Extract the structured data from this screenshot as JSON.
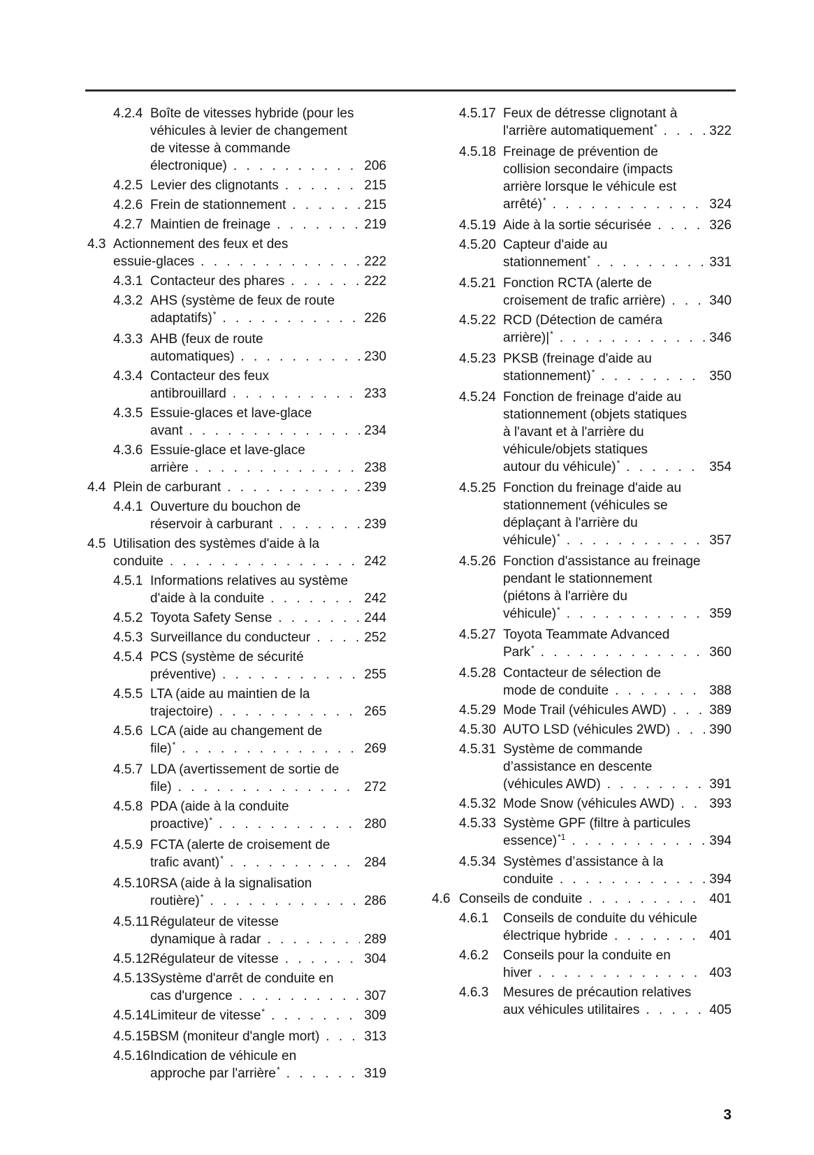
{
  "colors": {
    "ink": "#141414",
    "rule": "#2d2d2d",
    "paper": "#ffffff"
  },
  "page": {
    "number": "3"
  },
  "toc": {
    "columns": [
      {
        "entries": [
          {
            "num": "4.2.4",
            "level": 3,
            "lines": [
              "Boîte de vitesses hybride (pour les",
              "véhicules à levier de changement",
              "de vitesse à commande",
              "électronique)"
            ],
            "sup": "",
            "page": "206"
          },
          {
            "num": "4.2.5",
            "level": 3,
            "lines": [
              "Levier des clignotants"
            ],
            "sup": "",
            "page": "215"
          },
          {
            "num": "4.2.6",
            "level": 3,
            "lines": [
              "Frein de stationnement"
            ],
            "sup": "",
            "page": "215"
          },
          {
            "num": "4.2.7",
            "level": 3,
            "lines": [
              "Maintien de freinage"
            ],
            "sup": "",
            "page": "219"
          },
          {
            "num": "4.3",
            "level": 2,
            "lines": [
              "Actionnement des feux et des",
              "essuie-glaces"
            ],
            "sup": "",
            "page": "222"
          },
          {
            "num": "4.3.1",
            "level": 3,
            "lines": [
              "Contacteur des phares"
            ],
            "sup": "",
            "page": "222"
          },
          {
            "num": "4.3.2",
            "level": 3,
            "lines": [
              "AHS (système de feux de route",
              "adaptatifs)"
            ],
            "sup": "*",
            "page": "226"
          },
          {
            "num": "4.3.3",
            "level": 3,
            "lines": [
              "AHB (feux de route",
              "automatiques)"
            ],
            "sup": "",
            "page": "230"
          },
          {
            "num": "4.3.4",
            "level": 3,
            "lines": [
              "Contacteur des feux",
              "antibrouillard"
            ],
            "sup": "",
            "page": "233"
          },
          {
            "num": "4.3.5",
            "level": 3,
            "lines": [
              "Essuie-glaces et lave-glace",
              "avant"
            ],
            "sup": "",
            "page": "234"
          },
          {
            "num": "4.3.6",
            "level": 3,
            "lines": [
              "Essuie-glace et lave-glace",
              "arrière"
            ],
            "sup": "",
            "page": "238"
          },
          {
            "num": "4.4",
            "level": 2,
            "lines": [
              "Plein de carburant"
            ],
            "sup": "",
            "page": "239"
          },
          {
            "num": "4.4.1",
            "level": 3,
            "lines": [
              "Ouverture du bouchon de",
              "réservoir à carburant"
            ],
            "sup": "",
            "page": "239"
          },
          {
            "num": "4.5",
            "level": 2,
            "lines": [
              "Utilisation des systèmes d'aide à la",
              "conduite"
            ],
            "sup": "",
            "page": "242"
          },
          {
            "num": "4.5.1",
            "level": 3,
            "lines": [
              "Informations relatives au système",
              "d'aide à la conduite"
            ],
            "sup": "",
            "page": "242"
          },
          {
            "num": "4.5.2",
            "level": 3,
            "lines": [
              "Toyota Safety Sense"
            ],
            "sup": "",
            "page": "244"
          },
          {
            "num": "4.5.3",
            "level": 3,
            "lines": [
              "Surveillance du conducteur"
            ],
            "sup": "",
            "page": "252"
          },
          {
            "num": "4.5.4",
            "level": 3,
            "lines": [
              "PCS (système de sécurité",
              "préventive)"
            ],
            "sup": "",
            "page": "255"
          },
          {
            "num": "4.5.5",
            "level": 3,
            "lines": [
              "LTA (aide au maintien de la",
              "trajectoire)"
            ],
            "sup": "",
            "page": "265"
          },
          {
            "num": "4.5.6",
            "level": 3,
            "lines": [
              "LCA (aide au changement de",
              "file)"
            ],
            "sup": "*",
            "page": "269"
          },
          {
            "num": "4.5.7",
            "level": 3,
            "lines": [
              "LDA (avertissement de sortie de",
              "file)"
            ],
            "sup": "",
            "page": "272"
          },
          {
            "num": "4.5.8",
            "level": 3,
            "lines": [
              "PDA (aide à la conduite",
              "proactive)"
            ],
            "sup": "*",
            "page": "280"
          },
          {
            "num": "4.5.9",
            "level": 3,
            "lines": [
              "FCTA (alerte de croisement de",
              "trafic avant)"
            ],
            "sup": "*",
            "page": "284"
          },
          {
            "num": "4.5.10",
            "level": 3,
            "lines": [
              "RSA (aide à la signalisation",
              "routière)"
            ],
            "sup": "*",
            "page": "286"
          },
          {
            "num": "4.5.11",
            "level": 3,
            "lines": [
              "Régulateur de vitesse",
              "dynamique à radar"
            ],
            "sup": "",
            "page": "289"
          },
          {
            "num": "4.5.12",
            "level": 3,
            "lines": [
              "Régulateur de vitesse"
            ],
            "sup": "",
            "page": "304"
          },
          {
            "num": "4.5.13",
            "level": 3,
            "lines": [
              "Système d'arrêt de conduite en",
              "cas d'urgence"
            ],
            "sup": "",
            "page": "307"
          },
          {
            "num": "4.5.14",
            "level": 3,
            "lines": [
              "Limiteur de vitesse"
            ],
            "sup": "*",
            "page": "309"
          },
          {
            "num": "4.5.15",
            "level": 3,
            "lines": [
              "BSM (moniteur d'angle mort)"
            ],
            "sup": "",
            "page": "313"
          },
          {
            "num": "4.5.16",
            "level": 3,
            "lines": [
              "Indication de véhicule en",
              "approche par l'arrière"
            ],
            "sup": "*",
            "page": "319"
          }
        ]
      },
      {
        "entries": [
          {
            "num": "4.5.17",
            "level": 3,
            "lines": [
              "Feux de détresse clignotant à",
              "l'arrière automatiquement"
            ],
            "sup": "*",
            "page": "322"
          },
          {
            "num": "4.5.18",
            "level": 3,
            "lines": [
              "Freinage de prévention de",
              "collision secondaire (impacts",
              "arrière lorsque le véhicule est",
              "arrêté)"
            ],
            "sup": "*",
            "page": "324"
          },
          {
            "num": "4.5.19",
            "level": 3,
            "lines": [
              "Aide à la sortie sécurisée"
            ],
            "sup": "",
            "page": "326"
          },
          {
            "num": "4.5.20",
            "level": 3,
            "lines": [
              "Capteur d'aide au",
              "stationnement"
            ],
            "sup": "*",
            "page": "331"
          },
          {
            "num": "4.5.21",
            "level": 3,
            "lines": [
              "Fonction RCTA (alerte de",
              "croisement de trafic arrière)"
            ],
            "sup": "",
            "page": "340"
          },
          {
            "num": "4.5.22",
            "level": 3,
            "lines": [
              "RCD (Détection de caméra",
              "arrière)|"
            ],
            "sup": "*",
            "page": "346"
          },
          {
            "num": "4.5.23",
            "level": 3,
            "lines": [
              "PKSB (freinage d'aide au",
              "stationnement)"
            ],
            "sup": "*",
            "page": "350"
          },
          {
            "num": "4.5.24",
            "level": 3,
            "lines": [
              "Fonction de freinage d'aide au",
              "stationnement (objets statiques",
              "à l'avant et à l'arrière du",
              "véhicule/objets statiques",
              "autour du véhicule)"
            ],
            "sup": "*",
            "page": "354"
          },
          {
            "num": "4.5.25",
            "level": 3,
            "lines": [
              "Fonction du freinage d'aide au",
              "stationnement (véhicules se",
              "déplaçant à l'arrière du",
              "véhicule)"
            ],
            "sup": "*",
            "page": "357"
          },
          {
            "num": "4.5.26",
            "level": 3,
            "lines": [
              "Fonction d'assistance au freinage",
              "pendant le stationnement",
              "(piétons à l'arrière du",
              "véhicule)"
            ],
            "sup": "*",
            "page": "359"
          },
          {
            "num": "4.5.27",
            "level": 3,
            "lines": [
              "Toyota Teammate Advanced",
              "Park"
            ],
            "sup": "*",
            "page": "360"
          },
          {
            "num": "4.5.28",
            "level": 3,
            "lines": [
              "Contacteur de sélection de",
              "mode de conduite"
            ],
            "sup": "",
            "page": "388"
          },
          {
            "num": "4.5.29",
            "level": 3,
            "lines": [
              "Mode Trail (véhicules AWD)"
            ],
            "sup": "",
            "page": "389"
          },
          {
            "num": "4.5.30",
            "level": 3,
            "lines": [
              "AUTO LSD (véhicules 2WD)"
            ],
            "sup": "",
            "page": "390"
          },
          {
            "num": "4.5.31",
            "level": 3,
            "lines": [
              "Système de commande",
              "d’assistance en descente",
              "(véhicules AWD)"
            ],
            "sup": "",
            "page": "391"
          },
          {
            "num": "4.5.32",
            "level": 3,
            "lines": [
              "Mode Snow (véhicules AWD)"
            ],
            "sup": "",
            "page": "393"
          },
          {
            "num": "4.5.33",
            "level": 3,
            "lines": [
              "Système GPF (filtre à particules",
              "essence)"
            ],
            "sup": "*1",
            "page": "394"
          },
          {
            "num": "4.5.34",
            "level": 3,
            "lines": [
              "Systèmes d’assistance à la",
              "conduite"
            ],
            "sup": "",
            "page": "394"
          },
          {
            "num": "4.6",
            "level": 2,
            "lines": [
              "Conseils de conduite"
            ],
            "sup": "",
            "page": "401"
          },
          {
            "num": "4.6.1",
            "level": 3,
            "lines": [
              "Conseils de conduite du véhicule",
              "électrique hybride"
            ],
            "sup": "",
            "page": "401"
          },
          {
            "num": "4.6.2",
            "level": 3,
            "lines": [
              "Conseils pour la conduite en",
              "hiver"
            ],
            "sup": "",
            "page": "403"
          },
          {
            "num": "4.6.3",
            "level": 3,
            "lines": [
              "Mesures de précaution relatives",
              "aux véhicules utilitaires"
            ],
            "sup": "",
            "page": "405"
          }
        ]
      }
    ]
  }
}
